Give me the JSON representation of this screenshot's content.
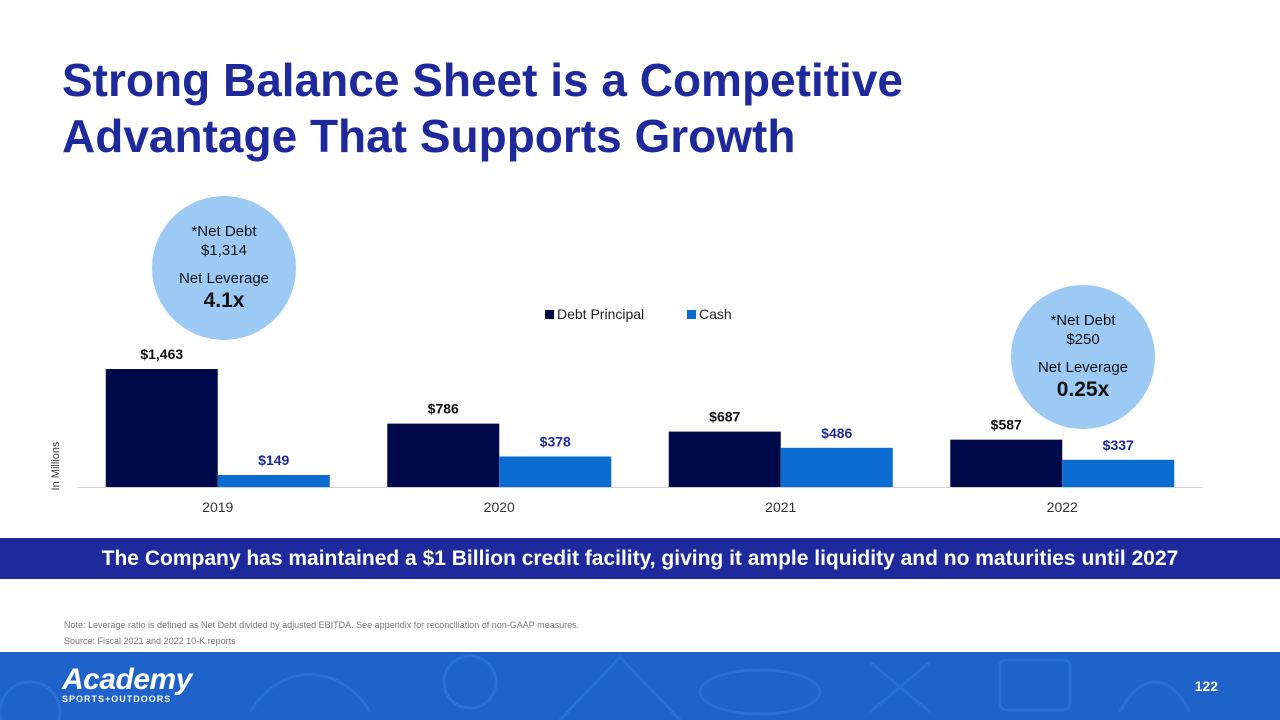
{
  "title_line1": "Strong Balance Sheet is a Competitive",
  "title_line2": "Advantage That Supports Growth",
  "bubble_left": {
    "net_debt_label": "*Net Debt",
    "net_debt_value": "$1,314",
    "leverage_label": "Net Leverage",
    "leverage_value": "4.1x"
  },
  "bubble_right": {
    "net_debt_label": "*Net Debt",
    "net_debt_value": "$250",
    "leverage_label": "Net Leverage",
    "leverage_value": "0.25x"
  },
  "banner": "The Company has maintained a $1 Billion credit facility, giving it ample liquidity and no maturities until 2027",
  "note": "Note: Leverage ratio is defined as Net Debt divided by adjusted EBITDA.  See appendix for reconciliation of non-GAAP measures.",
  "source": "Source: Fiscal 2021 and 2022 10-K reports",
  "logo": {
    "wordmark": "Academy",
    "tagline": "SPORTS+OUTDOORS"
  },
  "page_number": "122",
  "colors": {
    "title": "#1e2a9c",
    "debt": "#000a4a",
    "cash": "#0a6bd1",
    "bubble": "#9ccaf5",
    "banner": "#1e2a9c",
    "footer": "#1f62c9"
  },
  "chart_data": {
    "type": "bar",
    "categories": [
      "2019",
      "2020",
      "2021",
      "2022"
    ],
    "series": [
      {
        "name": "Debt Principal",
        "values": [
          1463,
          786,
          687,
          587
        ],
        "labels": [
          "$1,463",
          "$786",
          "$687",
          "$587"
        ]
      },
      {
        "name": "Cash",
        "values": [
          149,
          378,
          486,
          337
        ],
        "labels": [
          "$149",
          "$378",
          "$486",
          "$337"
        ]
      }
    ],
    "ylabel": "In Millions",
    "ylim": [
      0,
      1463
    ],
    "legend": "top-center"
  }
}
